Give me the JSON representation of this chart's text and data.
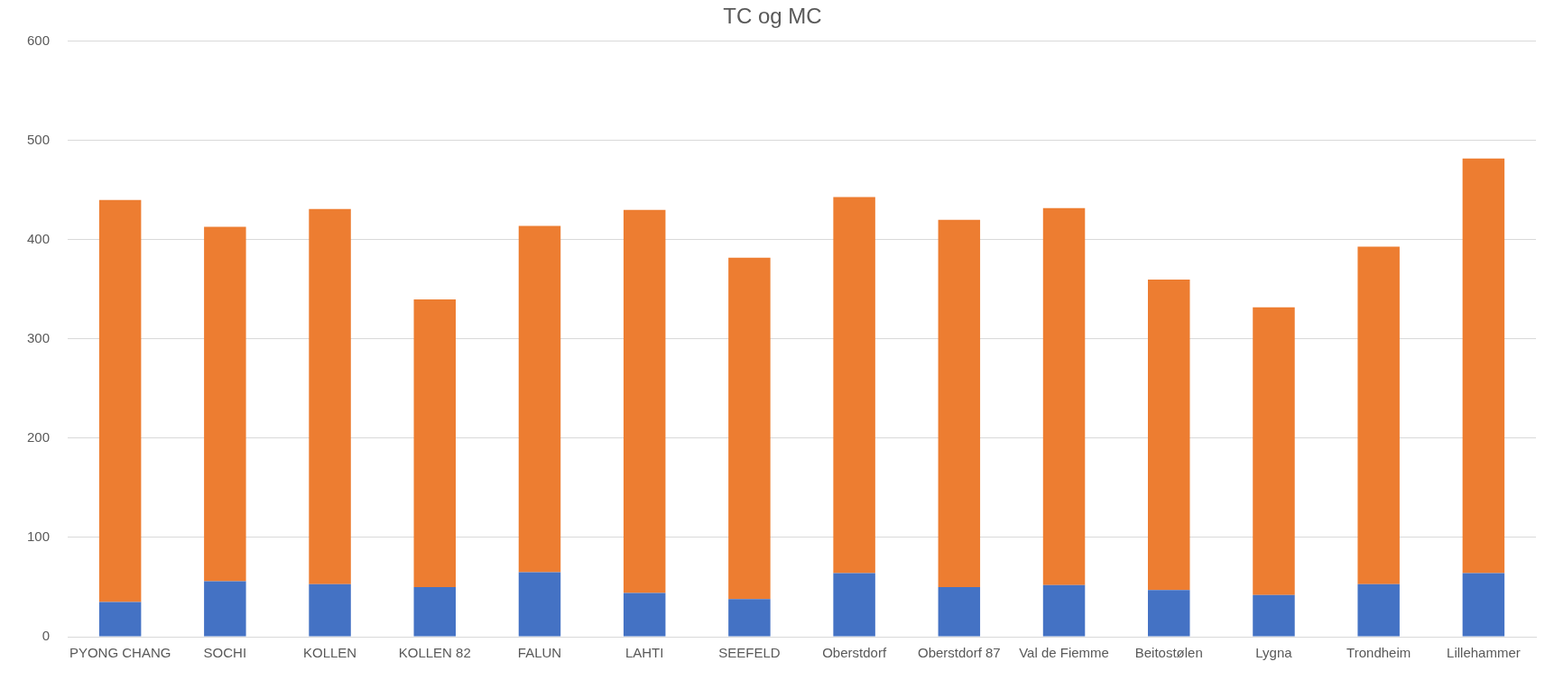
{
  "chart_data": {
    "type": "bar",
    "title": "TC og MC",
    "stacked": true,
    "grid": "y",
    "categories": [
      "PYONG CHANG",
      "SOCHI",
      "KOLLEN",
      "KOLLEN 82",
      "FALUN",
      "LAHTI",
      "SEEFELD",
      "Oberstdorf",
      "Oberstdorf 87",
      "Val de Fiemme",
      "Beitostølen",
      "Lygna",
      "Trondheim",
      "Lillehammer"
    ],
    "series": [
      {
        "color": "#4472c4",
        "values": [
          35,
          56,
          53,
          50,
          65,
          44,
          38,
          64,
          50,
          52,
          47,
          42,
          53,
          64
        ]
      },
      {
        "color": "#ed7d31",
        "values": [
          405,
          357,
          378,
          290,
          349,
          386,
          344,
          379,
          370,
          380,
          313,
          290,
          340,
          418
        ]
      }
    ],
    "ylim": [
      0,
      600
    ],
    "yticks": [
      0,
      100,
      200,
      300,
      400,
      500,
      600
    ]
  }
}
